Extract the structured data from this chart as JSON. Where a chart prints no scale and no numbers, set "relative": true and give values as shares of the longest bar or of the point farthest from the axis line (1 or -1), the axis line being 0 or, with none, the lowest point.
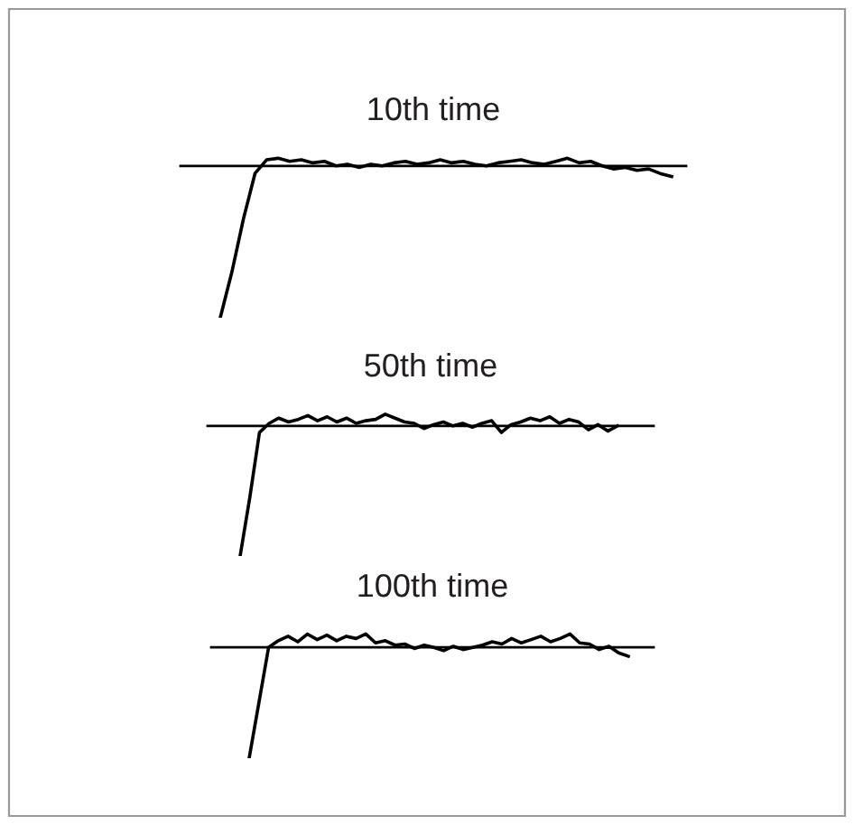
{
  "chart_data": [
    {
      "type": "line",
      "title": "10th time",
      "relative": true,
      "categories": [
        null,
        null,
        null,
        null,
        null,
        null,
        null,
        null,
        null,
        null,
        null,
        null,
        null,
        null,
        null,
        null,
        null,
        null,
        null,
        null,
        null,
        null,
        null,
        null,
        null,
        null,
        null,
        null,
        null,
        null,
        null,
        null,
        null,
        null,
        null,
        null,
        null,
        null,
        null,
        null
      ],
      "series": [
        {
          "color": "#000000",
          "values": [
            -1,
            -0.7,
            -0.35,
            -0.05,
            0.04,
            0.05,
            0.03,
            0.04,
            0.02,
            0.03,
            0.0,
            0.01,
            -0.01,
            0.01,
            0.0,
            0.02,
            0.03,
            0.01,
            0.02,
            0.04,
            0.02,
            0.03,
            0.01,
            0.0,
            0.02,
            0.03,
            0.04,
            0.02,
            0.01,
            0.03,
            0.05,
            0.02,
            0.03,
            0.0,
            -0.02,
            -0.01,
            -0.03,
            -0.02,
            -0.05,
            -0.07
          ]
        }
      ]
    },
    {
      "type": "line",
      "title": "50th time",
      "relative": true,
      "categories": [
        null,
        null,
        null,
        null,
        null,
        null,
        null,
        null,
        null,
        null,
        null,
        null,
        null,
        null,
        null,
        null,
        null,
        null,
        null,
        null,
        null,
        null,
        null,
        null,
        null,
        null,
        null,
        null,
        null,
        null,
        null,
        null,
        null,
        null,
        null,
        null,
        null,
        null,
        null,
        null
      ],
      "series": [
        {
          "color": "#000000",
          "values": [
            -1,
            -0.55,
            -0.05,
            0.02,
            0.06,
            0.03,
            0.05,
            0.08,
            0.04,
            0.07,
            0.03,
            0.06,
            0.02,
            0.04,
            0.05,
            0.09,
            0.06,
            0.03,
            0.02,
            -0.02,
            0.01,
            0.03,
            0.0,
            0.02,
            -0.01,
            0.02,
            0.04,
            -0.05,
            0.01,
            0.03,
            0.06,
            0.04,
            0.07,
            0.02,
            0.05,
            0.03,
            -0.03,
            0.01,
            -0.04,
            0.0
          ]
        }
      ]
    },
    {
      "type": "line",
      "title": "100th time",
      "relative": true,
      "categories": [
        null,
        null,
        null,
        null,
        null,
        null,
        null,
        null,
        null,
        null,
        null,
        null,
        null,
        null,
        null,
        null,
        null,
        null,
        null,
        null,
        null,
        null,
        null,
        null,
        null,
        null,
        null,
        null,
        null,
        null,
        null,
        null,
        null,
        null,
        null,
        null,
        null,
        null,
        null,
        null
      ],
      "series": [
        {
          "color": "#000000",
          "values": [
            -1,
            -0.5,
            0.0,
            0.06,
            0.1,
            0.05,
            0.12,
            0.07,
            0.11,
            0.06,
            0.1,
            0.08,
            0.12,
            0.04,
            0.06,
            0.02,
            0.03,
            -0.01,
            0.02,
            0.0,
            -0.03,
            0.01,
            -0.02,
            0.0,
            0.02,
            0.05,
            0.03,
            0.08,
            0.04,
            0.07,
            0.1,
            0.05,
            0.08,
            0.12,
            0.04,
            0.03,
            -0.02,
            0.01,
            -0.05,
            -0.08
          ]
        }
      ]
    }
  ]
}
